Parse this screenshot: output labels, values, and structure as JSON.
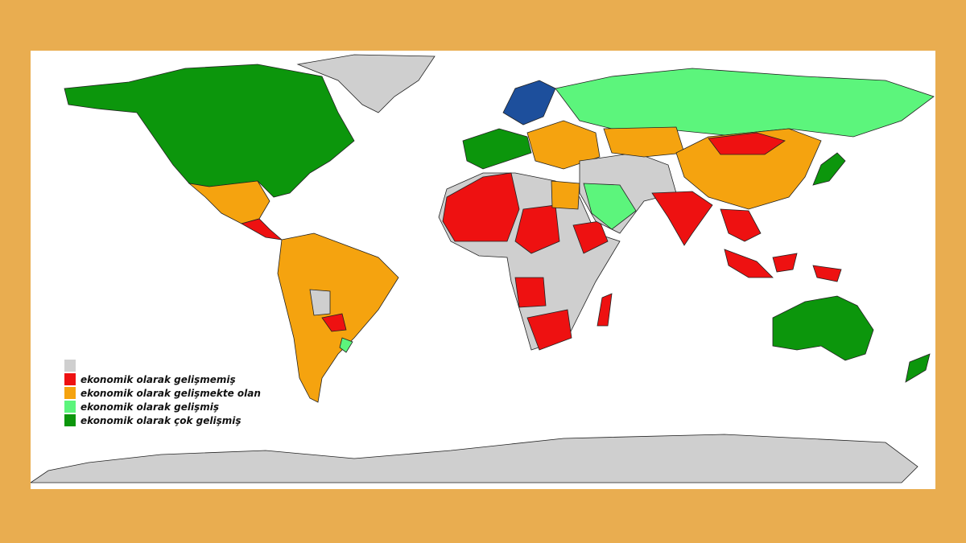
{
  "legend": {
    "items": [
      {
        "label": "",
        "color": "#cfcfcf"
      },
      {
        "label": "ekonomik olarak gelişmemiş",
        "color": "#ee1111"
      },
      {
        "label": "ekonomik olarak gelişmekte olan",
        "color": "#f5a30f"
      },
      {
        "label": "ekonomik olarak gelişmiş",
        "color": "#5cf57c"
      },
      {
        "label": "ekonomik olarak çok  gelişmiş",
        "color": "#0c960c"
      }
    ]
  },
  "colors": {
    "background": "#e9ad50",
    "no_data": "#cfcfcf",
    "underdeveloped": "#ee1111",
    "developing": "#f5a30f",
    "developed": "#5cf57c",
    "highly_developed": "#0c960c",
    "scandinavia": "#1d4f9c"
  }
}
